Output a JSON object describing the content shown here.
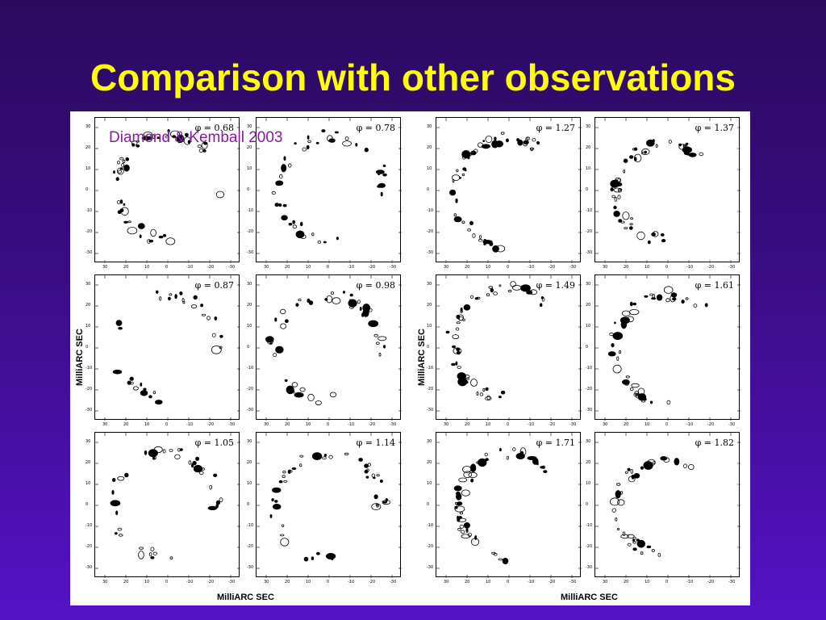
{
  "slide": {
    "title": "Comparison with other observations",
    "credit": "Diamond & Kemball 2003"
  },
  "figure": {
    "axis_label_y": "MilliARC SEC",
    "axis_label_x": "MilliARC SEC",
    "x_ticks": [
      "30",
      "20",
      "10",
      "0",
      "-10",
      "-20",
      "-30"
    ],
    "y_ticks": [
      "30",
      "20",
      "10",
      "0",
      "-10",
      "-20",
      "-30"
    ],
    "panels": [
      {
        "phase": "φ = 0.68"
      },
      {
        "phase": "φ = 0.78"
      },
      {
        "phase": "φ = 1.27"
      },
      {
        "phase": "φ = 1.37"
      },
      {
        "phase": "φ = 0.87"
      },
      {
        "phase": "φ = 0.98"
      },
      {
        "phase": "φ = 1.49"
      },
      {
        "phase": "φ = 1.61"
      },
      {
        "phase": "φ = 1.05"
      },
      {
        "phase": "φ = 1.14"
      },
      {
        "phase": "φ = 1.71"
      },
      {
        "phase": "φ = 1.82"
      }
    ]
  },
  "colors": {
    "title": "#ffff00",
    "credit": "#8a1aa0",
    "background_top": "#2b0a5e",
    "background_bottom": "#5512c6"
  }
}
